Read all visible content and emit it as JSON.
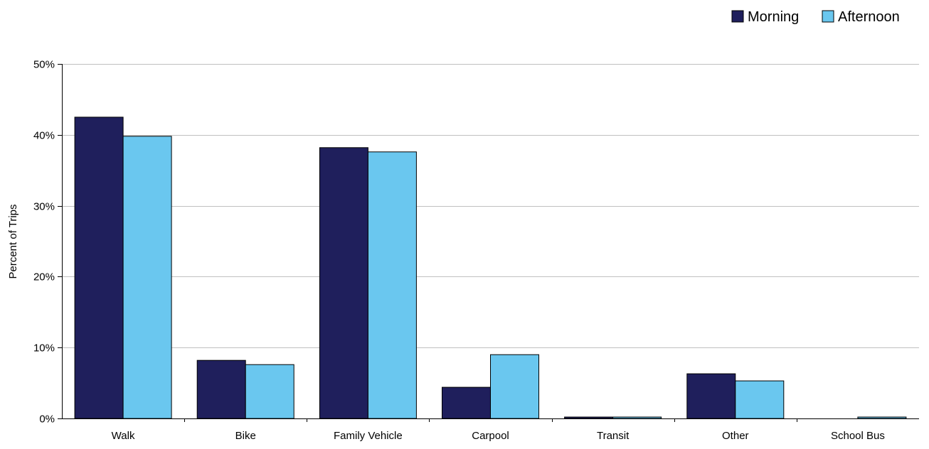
{
  "chart_data": {
    "type": "bar",
    "title": "",
    "xlabel": "",
    "ylabel": "Percent of Trips",
    "ylim": [
      0,
      50
    ],
    "yticks": [
      0,
      10,
      20,
      30,
      40,
      50
    ],
    "ytick_labels": [
      "0%",
      "10%",
      "20%",
      "30%",
      "40%",
      "50%"
    ],
    "grid": true,
    "legend_position": "top-right",
    "categories": [
      "Walk",
      "Bike",
      "Family Vehicle",
      "Carpool",
      "Transit",
      "Other",
      "School Bus"
    ],
    "series": [
      {
        "name": "Morning",
        "color": "#1f1f5c",
        "values": [
          42.5,
          8.2,
          38.2,
          4.4,
          0.2,
          6.3,
          0.0
        ]
      },
      {
        "name": "Afternoon",
        "color": "#6ac7ef",
        "values": [
          39.8,
          7.6,
          37.6,
          9.0,
          0.2,
          5.3,
          0.2
        ]
      }
    ]
  }
}
